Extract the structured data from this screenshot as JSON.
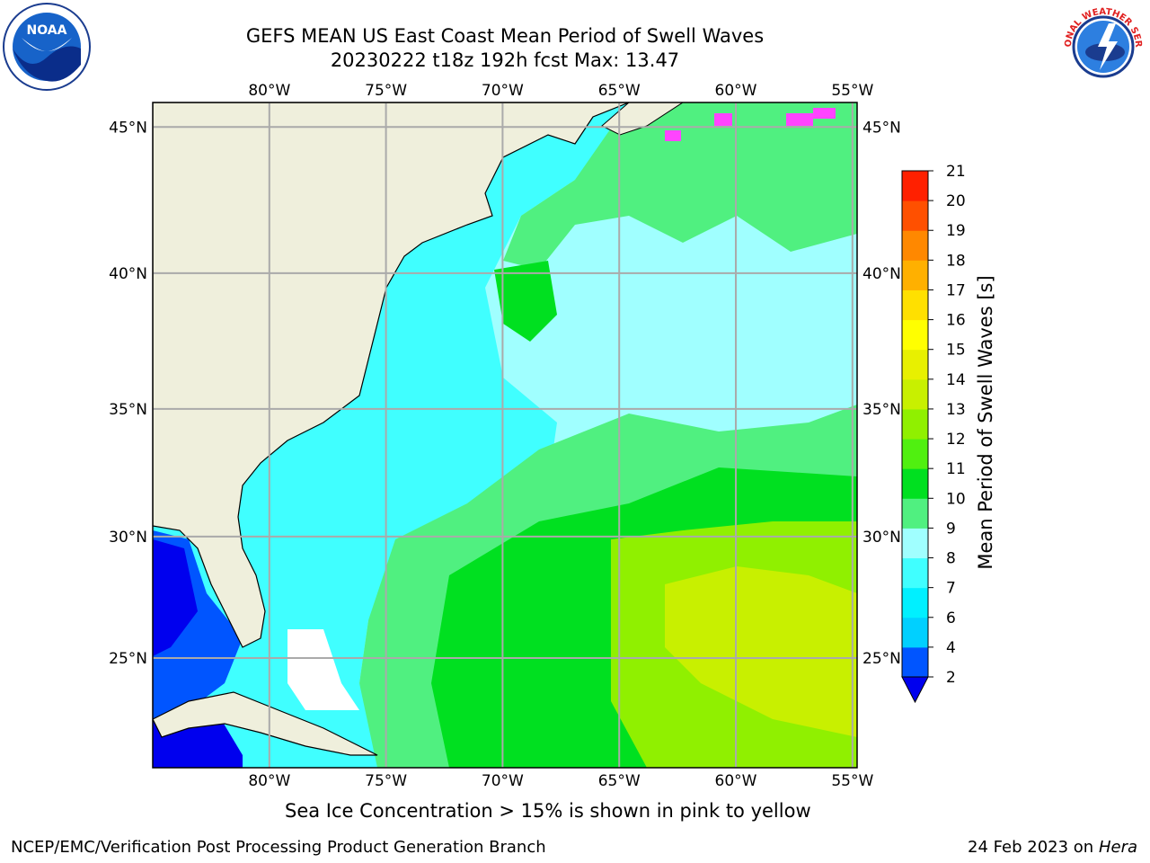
{
  "title": {
    "line1": "GEFS MEAN US East Coast Mean Period of Swell Waves",
    "line2": "20230222 t18z 192h fcst   Max: 13.47"
  },
  "logos": {
    "left": "noaa-logo",
    "right": "national-weather-service-logo",
    "left_text": "NOAA",
    "right_text": "NATIONAL WEATHER SERVICE"
  },
  "map": {
    "lon_labels": [
      "80°W",
      "75°W",
      "70°W",
      "65°W",
      "60°W",
      "55°W"
    ],
    "lat_labels": [
      "45°N",
      "40°N",
      "35°N",
      "30°N",
      "25°N"
    ],
    "lon_range": [
      -85,
      -54.8
    ],
    "lat_range": [
      20.3,
      45.8
    ],
    "land_color": "#efefdc",
    "grid_color": "#aaaaaa"
  },
  "colorbar": {
    "label": "Mean Period of Swell Waves [s]",
    "ticks": [
      "2",
      "4",
      "6",
      "7",
      "8",
      "9",
      "10",
      "11",
      "12",
      "13",
      "14",
      "15",
      "16",
      "17",
      "18",
      "19",
      "20",
      "21"
    ],
    "colors": [
      "#0055ff",
      "#00d0ff",
      "#00f0ff",
      "#40ffff",
      "#a0ffff",
      "#50f080",
      "#00e020",
      "#50f010",
      "#90f000",
      "#c8f000",
      "#e8f000",
      "#ffff00",
      "#ffe000",
      "#ffb000",
      "#ff8800",
      "#ff5000",
      "#ff2000"
    ],
    "extend_color": "#0000ee"
  },
  "footer": {
    "note": "Sea Ice Concentration > 15% is shown in pink to yellow",
    "credit_left": "NCEP/EMC/Verification Post Processing Product Generation Branch",
    "credit_date": "24 Feb 2023 on",
    "credit_host": "Hera"
  }
}
